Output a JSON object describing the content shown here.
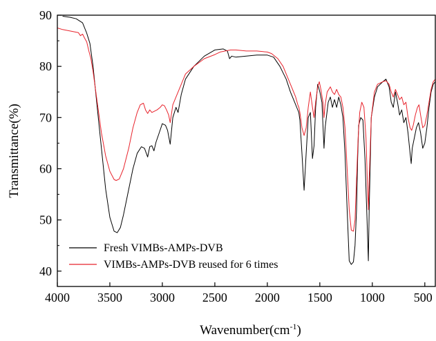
{
  "chart_data": {
    "type": "line",
    "xlabel": "Wavenumber(cm",
    "xlabel_sup": "-1",
    "xlabel_close": ")",
    "ylabel": "Transmittance(%)",
    "xlim": [
      4000,
      400
    ],
    "ylim": [
      37,
      90
    ],
    "x_reversed": true,
    "xticks": [
      4000,
      3500,
      3000,
      2500,
      2000,
      1500,
      1000,
      500
    ],
    "yticks": [
      40,
      50,
      60,
      70,
      80,
      90
    ],
    "legend_position": "bottom-left",
    "grid": false,
    "series": [
      {
        "name": "Fresh VIMBs-AMPs-DVB",
        "color": "#000000",
        "points": [
          [
            3950,
            89.8
          ],
          [
            3880,
            89.6
          ],
          [
            3820,
            89.3
          ],
          [
            3760,
            88.5
          ],
          [
            3720,
            86.5
          ],
          [
            3690,
            84.5
          ],
          [
            3660,
            80.0
          ],
          [
            3620,
            72.0
          ],
          [
            3580,
            64.0
          ],
          [
            3540,
            56.0
          ],
          [
            3500,
            50.5
          ],
          [
            3460,
            47.8
          ],
          [
            3430,
            47.5
          ],
          [
            3400,
            48.5
          ],
          [
            3370,
            51.0
          ],
          [
            3330,
            55.0
          ],
          [
            3280,
            60.0
          ],
          [
            3240,
            63.0
          ],
          [
            3200,
            64.3
          ],
          [
            3170,
            64.0
          ],
          [
            3140,
            62.3
          ],
          [
            3120,
            64.3
          ],
          [
            3100,
            64.5
          ],
          [
            3080,
            63.5
          ],
          [
            3060,
            65.2
          ],
          [
            3030,
            67.0
          ],
          [
            3000,
            68.8
          ],
          [
            2970,
            68.5
          ],
          [
            2950,
            67.5
          ],
          [
            2925,
            64.8
          ],
          [
            2900,
            70.0
          ],
          [
            2870,
            72.0
          ],
          [
            2850,
            71.0
          ],
          [
            2820,
            74.5
          ],
          [
            2780,
            77.5
          ],
          [
            2700,
            80.0
          ],
          [
            2600,
            82.0
          ],
          [
            2500,
            83.2
          ],
          [
            2420,
            83.4
          ],
          [
            2380,
            83.0
          ],
          [
            2360,
            81.5
          ],
          [
            2340,
            82.0
          ],
          [
            2300,
            81.8
          ],
          [
            2200,
            82.0
          ],
          [
            2100,
            82.2
          ],
          [
            2000,
            82.2
          ],
          [
            1940,
            81.8
          ],
          [
            1880,
            80.0
          ],
          [
            1820,
            77.5
          ],
          [
            1780,
            75.0
          ],
          [
            1750,
            73.5
          ],
          [
            1720,
            72.0
          ],
          [
            1700,
            71.0
          ],
          [
            1690,
            69.5
          ],
          [
            1670,
            63.0
          ],
          [
            1650,
            55.8
          ],
          [
            1630,
            63.0
          ],
          [
            1610,
            70.0
          ],
          [
            1590,
            71.0
          ],
          [
            1570,
            62.0
          ],
          [
            1555,
            64.5
          ],
          [
            1540,
            72.0
          ],
          [
            1520,
            76.5
          ],
          [
            1500,
            75.0
          ],
          [
            1480,
            73.0
          ],
          [
            1460,
            64.0
          ],
          [
            1450,
            68.0
          ],
          [
            1420,
            73.0
          ],
          [
            1400,
            74.0
          ],
          [
            1380,
            72.0
          ],
          [
            1360,
            73.5
          ],
          [
            1340,
            72.0
          ],
          [
            1320,
            74.0
          ],
          [
            1300,
            72.5
          ],
          [
            1280,
            70.0
          ],
          [
            1260,
            63.0
          ],
          [
            1240,
            52.0
          ],
          [
            1220,
            42.0
          ],
          [
            1200,
            41.3
          ],
          [
            1180,
            41.8
          ],
          [
            1165,
            45.0
          ],
          [
            1150,
            52.0
          ],
          [
            1140,
            62.0
          ],
          [
            1130,
            68.5
          ],
          [
            1110,
            70.0
          ],
          [
            1090,
            69.5
          ],
          [
            1070,
            62.0
          ],
          [
            1050,
            50.0
          ],
          [
            1038,
            42.0
          ],
          [
            1030,
            52.0
          ],
          [
            1010,
            70.0
          ],
          [
            980,
            74.0
          ],
          [
            950,
            76.0
          ],
          [
            900,
            77.0
          ],
          [
            870,
            77.5
          ],
          [
            840,
            76.0
          ],
          [
            820,
            73.0
          ],
          [
            800,
            72.0
          ],
          [
            780,
            75.0
          ],
          [
            760,
            73.0
          ],
          [
            740,
            70.5
          ],
          [
            720,
            71.5
          ],
          [
            700,
            69.0
          ],
          [
            680,
            70.0
          ],
          [
            660,
            67.0
          ],
          [
            640,
            63.0
          ],
          [
            630,
            61.0
          ],
          [
            620,
            64.0
          ],
          [
            600,
            66.0
          ],
          [
            580,
            68.0
          ],
          [
            560,
            69.0
          ],
          [
            540,
            67.0
          ],
          [
            520,
            64.0
          ],
          [
            500,
            65.0
          ],
          [
            480,
            68.0
          ],
          [
            460,
            72.0
          ],
          [
            440,
            75.0
          ],
          [
            420,
            76.5
          ],
          [
            400,
            77.0
          ]
        ]
      },
      {
        "name": "VIMBs-AMPs-DVB reused for 6 times",
        "color": "#e8222b",
        "points": [
          [
            4000,
            87.5
          ],
          [
            3950,
            87.2
          ],
          [
            3900,
            87.0
          ],
          [
            3850,
            86.8
          ],
          [
            3800,
            86.6
          ],
          [
            3780,
            86.0
          ],
          [
            3760,
            86.3
          ],
          [
            3740,
            85.5
          ],
          [
            3720,
            84.8
          ],
          [
            3700,
            83.0
          ],
          [
            3680,
            81.5
          ],
          [
            3660,
            79.0
          ],
          [
            3620,
            73.0
          ],
          [
            3580,
            67.0
          ],
          [
            3540,
            62.5
          ],
          [
            3500,
            59.5
          ],
          [
            3460,
            57.9
          ],
          [
            3440,
            57.7
          ],
          [
            3410,
            58.0
          ],
          [
            3370,
            60.0
          ],
          [
            3320,
            64.0
          ],
          [
            3280,
            68.0
          ],
          [
            3240,
            71.0
          ],
          [
            3210,
            72.5
          ],
          [
            3180,
            72.8
          ],
          [
            3160,
            71.5
          ],
          [
            3140,
            70.8
          ],
          [
            3120,
            71.5
          ],
          [
            3100,
            71.0
          ],
          [
            3080,
            71.2
          ],
          [
            3050,
            71.5
          ],
          [
            3020,
            72.0
          ],
          [
            3000,
            72.5
          ],
          [
            2980,
            72.3
          ],
          [
            2960,
            71.5
          ],
          [
            2940,
            70.5
          ],
          [
            2925,
            69.0
          ],
          [
            2900,
            72.5
          ],
          [
            2870,
            74.0
          ],
          [
            2830,
            76.0
          ],
          [
            2780,
            78.5
          ],
          [
            2700,
            80.0
          ],
          [
            2600,
            81.5
          ],
          [
            2500,
            82.3
          ],
          [
            2450,
            82.8
          ],
          [
            2400,
            83.0
          ],
          [
            2350,
            83.2
          ],
          [
            2300,
            83.2
          ],
          [
            2200,
            83.0
          ],
          [
            2100,
            83.0
          ],
          [
            2000,
            82.8
          ],
          [
            1960,
            82.5
          ],
          [
            1900,
            81.5
          ],
          [
            1850,
            80.0
          ],
          [
            1800,
            77.5
          ],
          [
            1760,
            75.5
          ],
          [
            1730,
            74.0
          ],
          [
            1710,
            72.5
          ],
          [
            1700,
            72.0
          ],
          [
            1690,
            71.0
          ],
          [
            1670,
            68.0
          ],
          [
            1650,
            66.5
          ],
          [
            1630,
            68.0
          ],
          [
            1610,
            72.0
          ],
          [
            1590,
            75.0
          ],
          [
            1570,
            72.0
          ],
          [
            1555,
            70.0
          ],
          [
            1540,
            73.0
          ],
          [
            1520,
            76.0
          ],
          [
            1505,
            77.0
          ],
          [
            1490,
            75.5
          ],
          [
            1470,
            73.0
          ],
          [
            1460,
            70.0
          ],
          [
            1450,
            72.5
          ],
          [
            1430,
            75.0
          ],
          [
            1400,
            76.0
          ],
          [
            1380,
            75.0
          ],
          [
            1360,
            74.5
          ],
          [
            1340,
            75.5
          ],
          [
            1320,
            74.5
          ],
          [
            1300,
            74.0
          ],
          [
            1280,
            72.0
          ],
          [
            1260,
            68.0
          ],
          [
            1240,
            60.0
          ],
          [
            1220,
            52.0
          ],
          [
            1200,
            48.0
          ],
          [
            1180,
            47.8
          ],
          [
            1165,
            50.0
          ],
          [
            1150,
            58.0
          ],
          [
            1135,
            66.0
          ],
          [
            1120,
            71.0
          ],
          [
            1100,
            73.0
          ],
          [
            1080,
            72.0
          ],
          [
            1060,
            66.0
          ],
          [
            1045,
            56.0
          ],
          [
            1038,
            52.0
          ],
          [
            1030,
            58.0
          ],
          [
            1010,
            70.0
          ],
          [
            980,
            75.0
          ],
          [
            950,
            76.5
          ],
          [
            900,
            77.0
          ],
          [
            870,
            77.2
          ],
          [
            840,
            76.5
          ],
          [
            820,
            75.0
          ],
          [
            800,
            74.0
          ],
          [
            780,
            75.5
          ],
          [
            760,
            74.5
          ],
          [
            740,
            73.5
          ],
          [
            720,
            74.0
          ],
          [
            700,
            72.5
          ],
          [
            680,
            73.0
          ],
          [
            660,
            70.0
          ],
          [
            640,
            68.0
          ],
          [
            625,
            67.5
          ],
          [
            610,
            68.5
          ],
          [
            590,
            70.5
          ],
          [
            570,
            72.0
          ],
          [
            555,
            72.5
          ],
          [
            540,
            70.5
          ],
          [
            520,
            68.0
          ],
          [
            500,
            68.5
          ],
          [
            480,
            70.5
          ],
          [
            460,
            73.0
          ],
          [
            440,
            75.5
          ],
          [
            420,
            77.0
          ],
          [
            400,
            77.5
          ]
        ]
      }
    ]
  }
}
